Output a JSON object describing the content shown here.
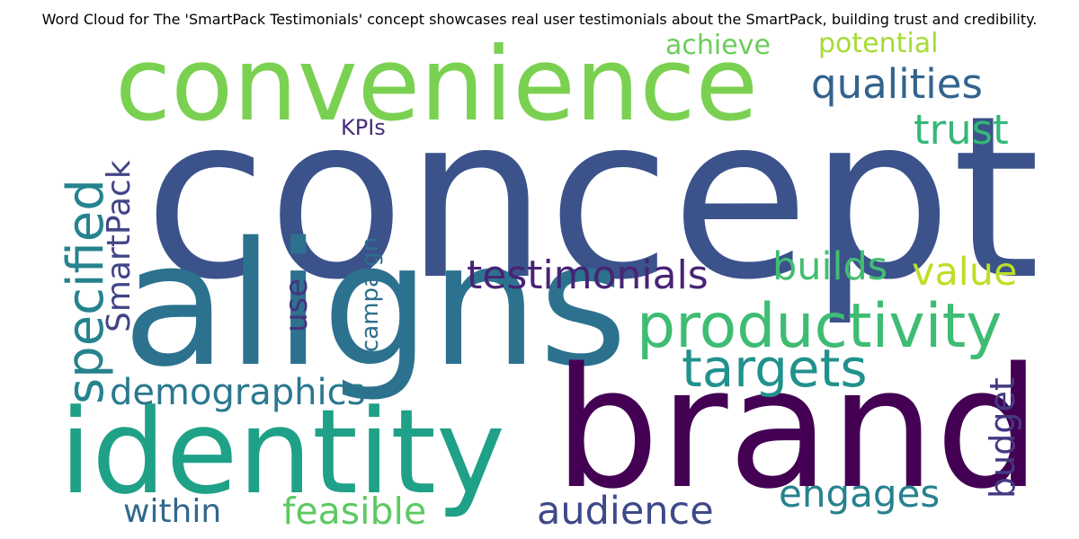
{
  "title": "Word Cloud for The 'SmartPack Testimonials' concept showcases real user testimonials about the SmartPack, building trust and credibility.",
  "words": {
    "concept": {
      "text": "concept",
      "color": "#3b528b"
    },
    "convenience": {
      "text": "convenience",
      "color": "#7ad151"
    },
    "aligns": {
      "text": "aligns",
      "color": "#2c728e"
    },
    "brand": {
      "text": "brand",
      "color": "#440154"
    },
    "identity": {
      "text": "identity",
      "color": "#1fa187"
    },
    "productivity": {
      "text": "productivity",
      "color": "#3fbc73"
    },
    "targets": {
      "text": "targets",
      "color": "#21918c"
    },
    "specified": {
      "text": "specified",
      "color": "#25838e"
    },
    "smartpack": {
      "text": "SmartPack",
      "color": "#414487"
    },
    "testimonials": {
      "text": "testimonials",
      "color": "#482475"
    },
    "demographics": {
      "text": "demographics",
      "color": "#2a788e"
    },
    "qualities": {
      "text": "qualities",
      "color": "#33638d"
    },
    "trust": {
      "text": "trust",
      "color": "#35b779"
    },
    "builds": {
      "text": "builds",
      "color": "#42be71"
    },
    "value": {
      "text": "value",
      "color": "#bddf26"
    },
    "engages": {
      "text": "engages",
      "color": "#26828e"
    },
    "audience": {
      "text": "audience",
      "color": "#3e4989"
    },
    "feasible": {
      "text": "feasible",
      "color": "#5ec962"
    },
    "within": {
      "text": "within",
      "color": "#31688e"
    },
    "budget": {
      "text": "budget",
      "color": "#443983"
    },
    "achieve": {
      "text": "achieve",
      "color": "#6ccd5a"
    },
    "potential": {
      "text": "potential",
      "color": "#a5db36"
    },
    "kpis": {
      "text": "KPIs",
      "color": "#472d7b"
    },
    "use": {
      "text": "use",
      "color": "#46327e"
    },
    "campaign": {
      "text": "campaign",
      "color": "#2e6e8e"
    }
  }
}
